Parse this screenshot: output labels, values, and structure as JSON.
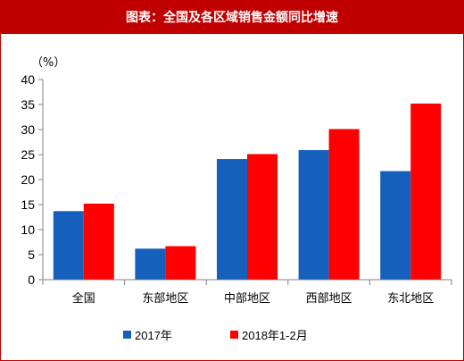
{
  "chart_data": {
    "type": "bar",
    "title": "图表：全国及各区域销售金额同比增速",
    "ylabel": "（%）",
    "xlabel": "",
    "categories": [
      "全国",
      "东部地区",
      "中部地区",
      "西部地区",
      "东北地区"
    ],
    "ylim": [
      0,
      40
    ],
    "yticks": [
      0,
      5,
      10,
      15,
      20,
      25,
      30,
      35,
      40
    ],
    "grid": false,
    "legend_position": "bottom",
    "series": [
      {
        "name": "2017年",
        "color": "#1560bd",
        "values": [
          13.7,
          6.2,
          24.1,
          25.9,
          21.7
        ]
      },
      {
        "name": "2018年1-2月",
        "color": "#ff0000",
        "values": [
          15.2,
          6.7,
          25.1,
          30.1,
          35.2
        ]
      }
    ]
  },
  "colors": {
    "title_background": "#c00000",
    "title_text": "#ffffff",
    "axis": "#808080"
  }
}
